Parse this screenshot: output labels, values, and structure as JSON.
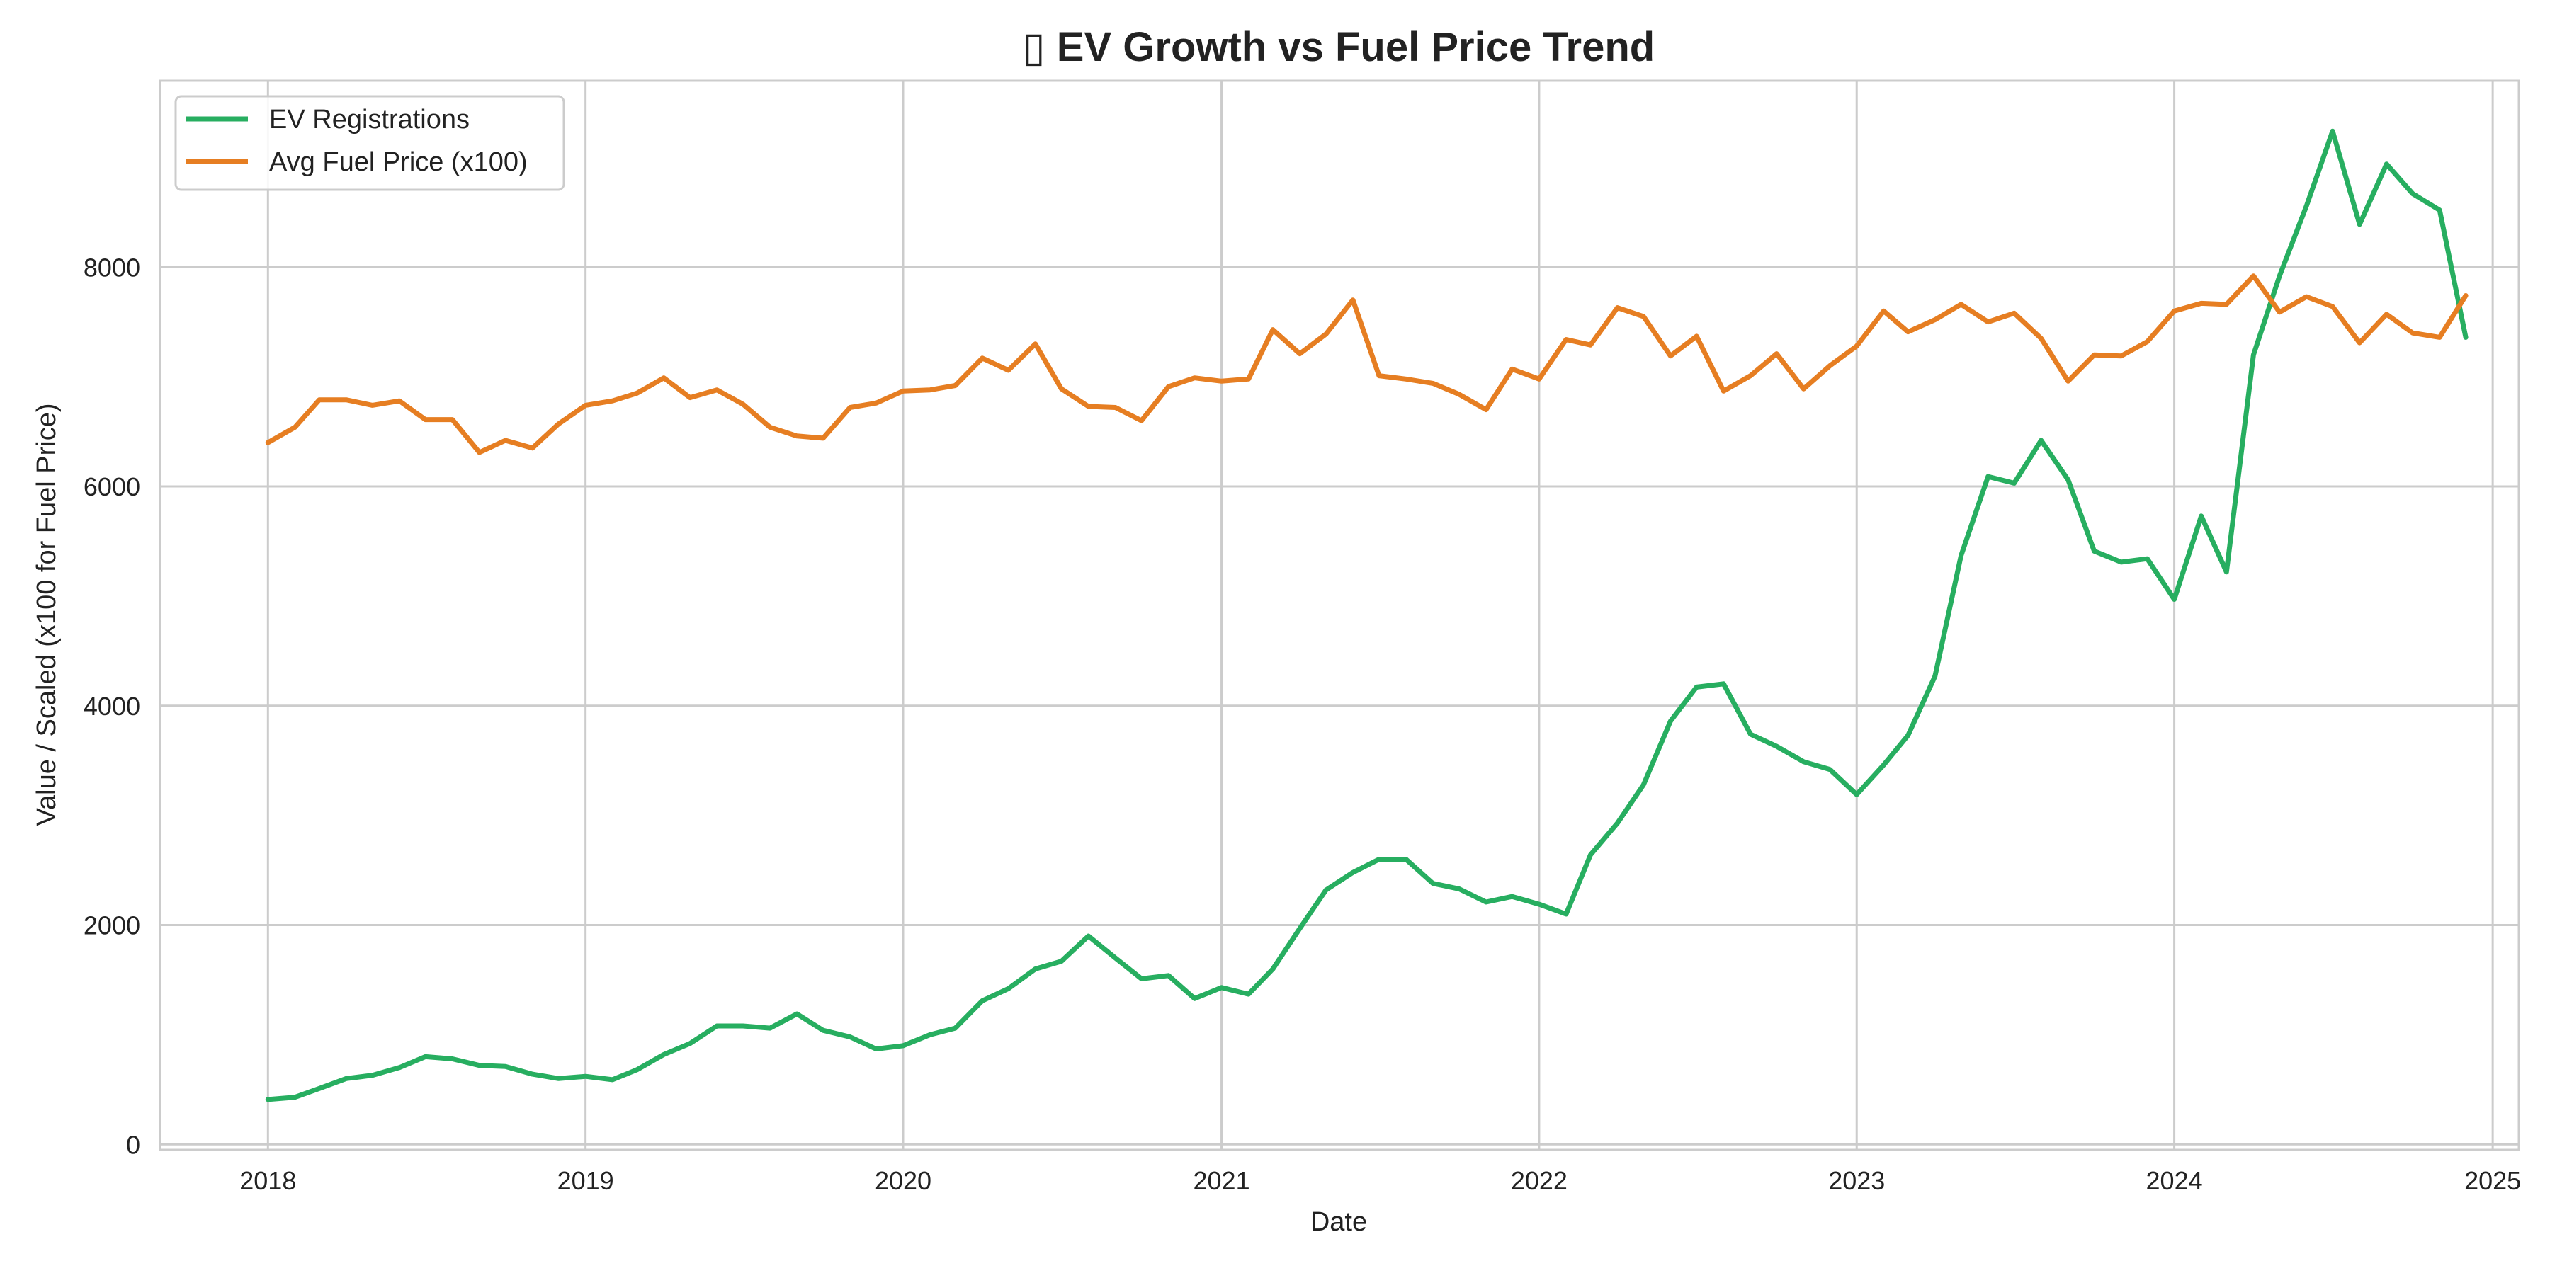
{
  "chart_data": {
    "type": "line",
    "title": "▯ EV Growth vs Fuel Price Trend",
    "xlabel": "Date",
    "ylabel": "Value / Scaled (x100 for Fuel Price)",
    "x_ticks": [
      "2018",
      "2019",
      "2020",
      "2021",
      "2022",
      "2023",
      "2024",
      "2025"
    ],
    "y_ticks": [
      "0",
      "2000",
      "4000",
      "6000",
      "8000"
    ],
    "y_tick_values": [
      0,
      2000,
      4000,
      6000,
      8000
    ],
    "x_range": [
      "2017-08-30",
      "2025-01-31"
    ],
    "ylim": [
      -50,
      9700
    ],
    "grid": true,
    "legend_position": "top-left",
    "x": [
      "2018-01-01",
      "2018-02-01",
      "2018-03-01",
      "2018-04-01",
      "2018-05-01",
      "2018-06-01",
      "2018-07-01",
      "2018-08-01",
      "2018-09-01",
      "2018-10-01",
      "2018-11-01",
      "2018-12-01",
      "2019-01-01",
      "2019-02-01",
      "2019-03-01",
      "2019-04-01",
      "2019-05-01",
      "2019-06-01",
      "2019-07-01",
      "2019-08-01",
      "2019-09-01",
      "2019-10-01",
      "2019-11-01",
      "2019-12-01",
      "2020-01-01",
      "2020-02-01",
      "2020-03-01",
      "2020-04-01",
      "2020-05-01",
      "2020-06-01",
      "2020-07-01",
      "2020-08-01",
      "2020-09-01",
      "2020-10-01",
      "2020-11-01",
      "2020-12-01",
      "2021-01-01",
      "2021-02-01",
      "2021-03-01",
      "2021-04-01",
      "2021-05-01",
      "2021-06-01",
      "2021-07-01",
      "2021-08-01",
      "2021-09-01",
      "2021-10-01",
      "2021-11-01",
      "2021-12-01",
      "2022-01-01",
      "2022-02-01",
      "2022-03-01",
      "2022-04-01",
      "2022-05-01",
      "2022-06-01",
      "2022-07-01",
      "2022-08-01",
      "2022-09-01",
      "2022-10-01",
      "2022-11-01",
      "2022-12-01",
      "2023-01-01",
      "2023-02-01",
      "2023-03-01",
      "2023-04-01",
      "2023-05-01",
      "2023-06-01",
      "2023-07-01",
      "2023-08-01",
      "2023-09-01",
      "2023-10-01",
      "2023-11-01",
      "2023-12-01",
      "2024-01-01",
      "2024-02-01",
      "2024-03-01",
      "2024-04-01",
      "2024-05-01",
      "2024-06-01",
      "2024-07-01",
      "2024-08-01",
      "2024-09-01",
      "2024-10-01",
      "2024-11-01",
      "2024-12-01"
    ],
    "series": [
      {
        "name": "EV Registrations",
        "color": "#27ae60",
        "values": [
          410,
          430,
          510,
          600,
          630,
          700,
          800,
          780,
          720,
          710,
          640,
          600,
          620,
          590,
          680,
          820,
          920,
          1080,
          1080,
          1060,
          1190,
          1040,
          980,
          870,
          900,
          1000,
          1060,
          1310,
          1420,
          1600,
          1670,
          1900,
          1700,
          1510,
          1540,
          1330,
          1430,
          1370,
          1600,
          1970,
          2320,
          2480,
          2600,
          2600,
          2380,
          2330,
          2210,
          2260,
          2190,
          2100,
          2640,
          2930,
          3280,
          3860,
          4170,
          4200,
          3740,
          3630,
          3490,
          3420,
          3190,
          3460,
          3730,
          4270,
          5370,
          6090,
          6030,
          6420,
          6060,
          5410,
          5310,
          5340,
          4970,
          5730,
          5220,
          7200,
          7920,
          8560,
          9240,
          8390,
          8940,
          8670,
          8520,
          7360
        ]
      },
      {
        "name": "Avg Fuel Price (x100)",
        "color": "#e67e22",
        "values": [
          6400,
          6540,
          6790,
          6790,
          6740,
          6780,
          6610,
          6610,
          6310,
          6420,
          6350,
          6570,
          6740,
          6780,
          6850,
          6990,
          6810,
          6880,
          6750,
          6540,
          6460,
          6440,
          6720,
          6760,
          6870,
          6880,
          6920,
          7170,
          7060,
          7300,
          6890,
          6730,
          6720,
          6600,
          6910,
          6990,
          6960,
          6980,
          7430,
          7210,
          7390,
          7700,
          7010,
          6980,
          6940,
          6840,
          6700,
          7070,
          6980,
          7340,
          7290,
          7630,
          7550,
          7190,
          7370,
          6870,
          7010,
          7210,
          6890,
          7100,
          7280,
          7600,
          7410,
          7520,
          7660,
          7500,
          7580,
          7350,
          6960,
          7200,
          7190,
          7320,
          7600,
          7670,
          7660,
          7920,
          7590,
          7730,
          7640,
          7310,
          7570,
          7400,
          7360,
          7740
        ]
      }
    ]
  }
}
